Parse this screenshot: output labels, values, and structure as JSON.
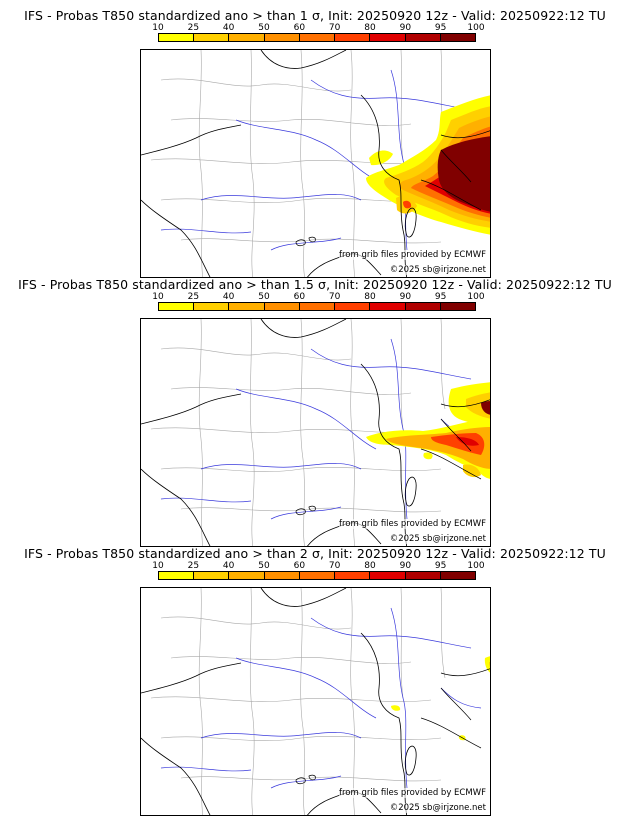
{
  "colorbar": {
    "ticks": [
      "10",
      "25",
      "40",
      "50",
      "60",
      "70",
      "80",
      "90",
      "95",
      "100"
    ],
    "colors": [
      "#ffff00",
      "#ffd000",
      "#ffb000",
      "#ff9000",
      "#ff7000",
      "#ff4000",
      "#e00000",
      "#b00000",
      "#800000"
    ]
  },
  "panels": [
    {
      "title": "IFS - Probas T850  standardized ano > than 1 σ, Init: 20250920 12z - Valid: 20250922:12 TU",
      "source_credit": "from grib files provided by ECMWF",
      "copyright": "©2025 sb@irjzone.net"
    },
    {
      "title": "IFS - Probas T850  standardized ano > than 1.5 σ, Init: 20250920 12z - Valid: 20250922:12 TU",
      "source_credit": "from grib files provided by ECMWF",
      "copyright": "©2025 sb@irjzone.net"
    },
    {
      "title": "IFS - Probas T850  standardized ano > than 2 σ, Init: 20250920 12z - Valid: 20250922:12 TU",
      "source_credit": "from grib files provided by ECMWF",
      "copyright": "©2025 sb@irjzone.net"
    }
  ]
}
